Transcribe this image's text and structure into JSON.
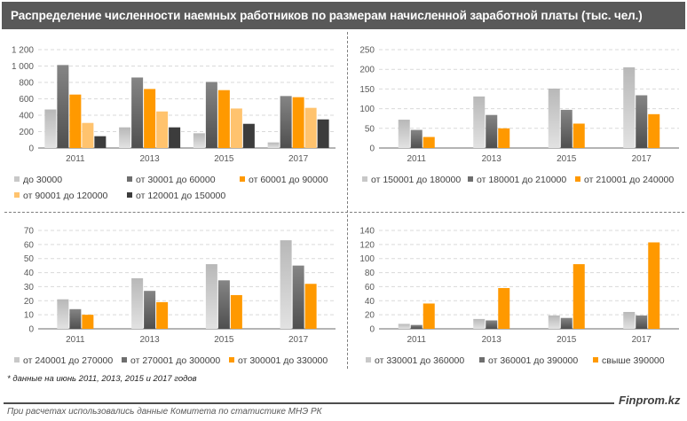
{
  "header": {
    "title": "Распределение численности наемных работников по размерам начисленной заработной платы (тыс. чел.)"
  },
  "colors": {
    "header_bg": "#595959",
    "light_gray": "#c8c8c8",
    "dark_gray": "#6e6e6e",
    "orange": "#ff9900",
    "light_orange": "#ffc36e",
    "black": "#3c3c3c"
  },
  "chart_data": [
    {
      "type": "bar",
      "title": "",
      "categories": [
        "2011",
        "2013",
        "2015",
        "2017"
      ],
      "ylim": [
        0,
        1200
      ],
      "yticks": [
        0,
        200,
        400,
        600,
        800,
        1000,
        1200
      ],
      "ytick_labels": [
        "0",
        "200",
        "400",
        "600",
        "800",
        "1 000",
        "1 200"
      ],
      "grid": true,
      "legend_position": "bottom",
      "series": [
        {
          "name": "до 30000",
          "color": "light_gray",
          "values": [
            470,
            252,
            180,
            68
          ]
        },
        {
          "name": "от 30001 до 60000",
          "color": "dark_gray",
          "values": [
            1012,
            860,
            806,
            634
          ]
        },
        {
          "name": "от 60001 до 90000",
          "color": "orange",
          "values": [
            652,
            720,
            706,
            620
          ]
        },
        {
          "name": "от 90001 до 120000",
          "color": "light_orange",
          "values": [
            306,
            446,
            482,
            490
          ]
        },
        {
          "name": "от 120001 до 150000",
          "color": "black",
          "values": [
            144,
            252,
            295,
            349
          ]
        }
      ]
    },
    {
      "type": "bar",
      "title": "",
      "categories": [
        "2011",
        "2013",
        "2015",
        "2017"
      ],
      "ylim": [
        0,
        250
      ],
      "yticks": [
        0,
        50,
        100,
        150,
        200,
        250
      ],
      "ytick_labels": [
        "0",
        "50",
        "100",
        "150",
        "200",
        "250"
      ],
      "grid": true,
      "legend_position": "bottom",
      "series": [
        {
          "name": "от 150001 до 180000",
          "color": "light_gray",
          "values": [
            72,
            131,
            151,
            205
          ]
        },
        {
          "name": "от 180001 до 210000",
          "color": "dark_gray",
          "values": [
            46,
            84,
            97,
            134
          ]
        },
        {
          "name": "от 210001 до 240000",
          "color": "orange",
          "values": [
            28,
            50,
            62,
            86
          ]
        }
      ]
    },
    {
      "type": "bar",
      "title": "",
      "categories": [
        "2011",
        "2013",
        "2015",
        "2017"
      ],
      "ylim": [
        0,
        70
      ],
      "yticks": [
        0,
        10,
        20,
        30,
        40,
        50,
        60,
        70
      ],
      "ytick_labels": [
        "0",
        "10",
        "20",
        "30",
        "40",
        "50",
        "60",
        "70"
      ],
      "grid": true,
      "legend_position": "bottom",
      "series": [
        {
          "name": "от 240001 до 270000",
          "color": "light_gray",
          "values": [
            21,
            36,
            46,
            63
          ]
        },
        {
          "name": "от 270001 до 300000",
          "color": "dark_gray",
          "values": [
            14,
            27,
            34.5,
            45
          ]
        },
        {
          "name": "от 300001 до 330000",
          "color": "orange",
          "values": [
            10,
            19,
            24,
            32
          ]
        }
      ]
    },
    {
      "type": "bar",
      "title": "",
      "categories": [
        "2011",
        "2013",
        "2015",
        "2017"
      ],
      "ylim": [
        0,
        140
      ],
      "yticks": [
        0,
        20,
        40,
        60,
        80,
        100,
        120,
        140
      ],
      "ytick_labels": [
        "0",
        "20",
        "40",
        "60",
        "80",
        "100",
        "120",
        "140"
      ],
      "grid": true,
      "legend_position": "bottom",
      "series": [
        {
          "name": "от 330001 до 360000",
          "color": "light_gray",
          "values": [
            7,
            14,
            19,
            24
          ]
        },
        {
          "name": "от 360001 до 390000",
          "color": "dark_gray",
          "values": [
            5.5,
            12,
            15.5,
            19
          ]
        },
        {
          "name": "свыше 390000",
          "color": "orange",
          "values": [
            36,
            58,
            92,
            123
          ]
        }
      ]
    }
  ],
  "footer": {
    "note": "* данные на июнь 2011, 2013, 2015 и 2017 годов",
    "brand": "Finprom.kz",
    "source": "При расчетах использовались данные Комитета по статистике МНЭ РК"
  }
}
